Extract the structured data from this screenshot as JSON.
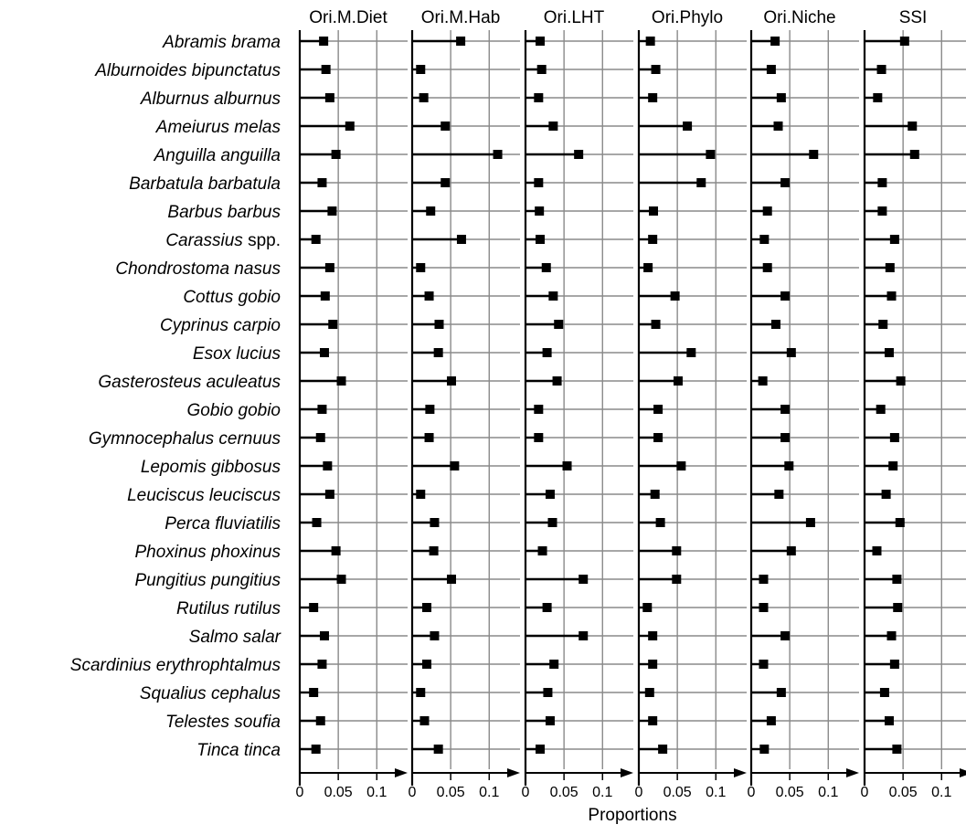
{
  "chart_data": {
    "type": "lollipop-dot-plot",
    "xlabel": "Proportions",
    "x_ticks": [
      "0",
      "0.05",
      "0.1"
    ],
    "x_tick_values": [
      0,
      0.05,
      0.1
    ],
    "xlim": [
      0,
      0.14
    ],
    "grid": true,
    "species": [
      {
        "genus": "Abramis brama",
        "suffix": ""
      },
      {
        "genus": "Alburnoides bipunctatus",
        "suffix": ""
      },
      {
        "genus": "Alburnus alburnus",
        "suffix": ""
      },
      {
        "genus": "Ameiurus melas",
        "suffix": ""
      },
      {
        "genus": "Anguilla anguilla",
        "suffix": ""
      },
      {
        "genus": "Barbatula barbatula",
        "suffix": ""
      },
      {
        "genus": "Barbus barbus",
        "suffix": ""
      },
      {
        "genus": "Carassius",
        "suffix": " spp."
      },
      {
        "genus": "Chondrostoma nasus",
        "suffix": ""
      },
      {
        "genus": "Cottus gobio",
        "suffix": ""
      },
      {
        "genus": "Cyprinus carpio",
        "suffix": ""
      },
      {
        "genus": "Esox lucius",
        "suffix": ""
      },
      {
        "genus": "Gasterosteus aculeatus",
        "suffix": ""
      },
      {
        "genus": "Gobio gobio",
        "suffix": ""
      },
      {
        "genus": "Gymnocephalus cernuus",
        "suffix": ""
      },
      {
        "genus": "Lepomis gibbosus",
        "suffix": ""
      },
      {
        "genus": "Leuciscus leuciscus",
        "suffix": ""
      },
      {
        "genus": "Perca fluviatilis",
        "suffix": ""
      },
      {
        "genus": "Phoxinus phoxinus",
        "suffix": ""
      },
      {
        "genus": "Pungitius pungitius",
        "suffix": ""
      },
      {
        "genus": "Rutilus rutilus",
        "suffix": ""
      },
      {
        "genus": "Salmo salar",
        "suffix": ""
      },
      {
        "genus": "Scardinius erythrophtalmus",
        "suffix": ""
      },
      {
        "genus": "Squalius cephalus",
        "suffix": ""
      },
      {
        "genus": "Telestes soufia",
        "suffix": ""
      },
      {
        "genus": "Tinca tinca",
        "suffix": ""
      }
    ],
    "panels": [
      {
        "name": "Ori.M.Diet",
        "values": [
          0.031,
          0.034,
          0.039,
          0.065,
          0.047,
          0.029,
          0.042,
          0.021,
          0.039,
          0.033,
          0.043,
          0.032,
          0.054,
          0.029,
          0.027,
          0.036,
          0.039,
          0.022,
          0.047,
          0.054,
          0.018,
          0.032,
          0.029,
          0.018,
          0.027,
          0.021
        ]
      },
      {
        "name": "Ori.M.Hab",
        "values": [
          0.063,
          0.011,
          0.015,
          0.043,
          0.111,
          0.043,
          0.024,
          0.064,
          0.011,
          0.022,
          0.035,
          0.034,
          0.051,
          0.023,
          0.022,
          0.055,
          0.011,
          0.029,
          0.028,
          0.051,
          0.019,
          0.029,
          0.019,
          0.011,
          0.016,
          0.034
        ]
      },
      {
        "name": "Ori.LHT",
        "values": [
          0.019,
          0.021,
          0.017,
          0.036,
          0.069,
          0.017,
          0.018,
          0.019,
          0.027,
          0.036,
          0.043,
          0.028,
          0.041,
          0.017,
          0.017,
          0.054,
          0.032,
          0.035,
          0.022,
          0.075,
          0.028,
          0.075,
          0.037,
          0.029,
          0.032,
          0.019
        ]
      },
      {
        "name": "Ori.Phylo",
        "values": [
          0.015,
          0.022,
          0.018,
          0.063,
          0.093,
          0.081,
          0.019,
          0.018,
          0.012,
          0.047,
          0.022,
          0.068,
          0.051,
          0.025,
          0.025,
          0.055,
          0.021,
          0.028,
          0.049,
          0.049,
          0.011,
          0.018,
          0.018,
          0.014,
          0.018,
          0.031
        ]
      },
      {
        "name": "Ori.Niche",
        "values": [
          0.031,
          0.026,
          0.039,
          0.035,
          0.081,
          0.044,
          0.021,
          0.017,
          0.021,
          0.044,
          0.032,
          0.052,
          0.015,
          0.044,
          0.044,
          0.049,
          0.036,
          0.077,
          0.052,
          0.016,
          0.016,
          0.044,
          0.016,
          0.039,
          0.026,
          0.017
        ]
      },
      {
        "name": "SSI",
        "values": [
          0.052,
          0.022,
          0.017,
          0.062,
          0.065,
          0.023,
          0.023,
          0.039,
          0.033,
          0.035,
          0.024,
          0.032,
          0.047,
          0.021,
          0.039,
          0.037,
          0.028,
          0.046,
          0.016,
          0.042,
          0.043,
          0.035,
          0.039,
          0.026,
          0.032,
          0.042
        ]
      }
    ],
    "colors": {
      "marker": "#000000",
      "stem": "#000000",
      "grid": "#8a8a8a",
      "axis": "#000000"
    }
  }
}
